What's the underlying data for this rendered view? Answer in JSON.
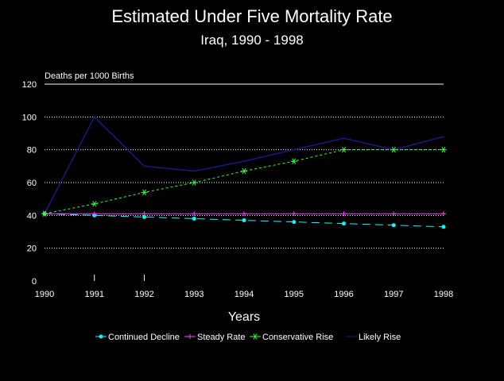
{
  "chart_data": {
    "type": "line",
    "title": "Estimated Under Five Mortality Rate",
    "subtitle": "Iraq, 1990 - 1998",
    "ylabel": "Deaths per 1000 Births",
    "xlabel": "Years",
    "ylim": [
      0,
      120
    ],
    "yticks": [
      0,
      20,
      40,
      60,
      80,
      100,
      120
    ],
    "x": [
      "1990",
      "1991",
      "1992",
      "1993",
      "1994",
      "1995",
      "1996",
      "1997",
      "1998"
    ],
    "series": [
      {
        "name": "Continued Decline",
        "color": "#00ffff",
        "marker": "circle",
        "values": [
          41,
          40,
          39,
          38,
          37,
          36,
          35,
          34,
          33
        ]
      },
      {
        "name": "Steady Rate",
        "color": "#ff40ff",
        "marker": "plus",
        "values": [
          41,
          41,
          41,
          41,
          41,
          41,
          41,
          41,
          41
        ]
      },
      {
        "name": "Conservative Rise",
        "color": "#33ff33",
        "marker": "asterisk",
        "values": [
          41,
          47,
          54,
          60,
          67,
          73,
          80,
          80,
          80
        ]
      },
      {
        "name": "Likely Rise",
        "color": "#1a1a80",
        "marker": "none",
        "values": [
          41,
          100,
          70,
          67,
          73,
          80,
          87,
          80,
          88
        ]
      }
    ],
    "grid": true,
    "legend_position": "bottom"
  }
}
